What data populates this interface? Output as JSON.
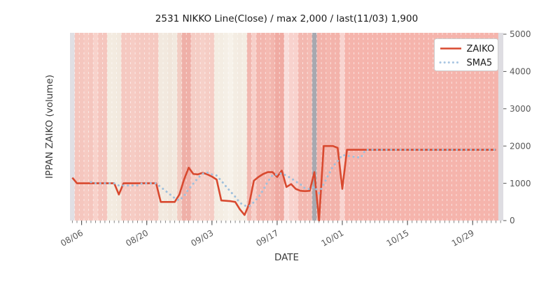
{
  "title": "2531 NIKKO Line(Close) / max 2,000 / last(11/03) 1,900",
  "axes": {
    "x_label": "DATE",
    "y_label": "IPPAN ZAIKO (volume)",
    "y_tick_labels": [
      "0",
      "1000",
      "2000",
      "3000",
      "4000",
      "5000"
    ],
    "x_tick_labels": [
      "08/06",
      "08/20",
      "09/03",
      "09/17",
      "10/01",
      "10/15",
      "10/29"
    ],
    "x_tick_day_indices": [
      2,
      16,
      30,
      44,
      58,
      72,
      86
    ]
  },
  "legend": {
    "items": [
      {
        "label": "ZAIKO",
        "color": "#d8492f",
        "style": "solid"
      },
      {
        "label": "SMA5",
        "color": "#a9c6e2",
        "style": "dotted"
      }
    ]
  },
  "chart_data": {
    "type": "line",
    "title": "2531 NIKKO Line(Close) / max 2,000 / last(11/03) 1,900",
    "xlabel": "DATE",
    "ylabel": "IPPAN ZAIKO (volume)",
    "x_start_date": "08/04",
    "x_end_date": "11/03",
    "num_days": 92,
    "ylim": [
      0,
      5000
    ],
    "max_value": 2000,
    "last_value": 1900,
    "last_date": "11/03",
    "series": [
      {
        "name": "ZAIKO",
        "color": "#d8492f",
        "style": "solid",
        "values": [
          1150,
          1000,
          1000,
          1000,
          1000,
          1000,
          1000,
          1000,
          1000,
          1000,
          700,
          1000,
          1000,
          1000,
          1000,
          1000,
          1000,
          1000,
          1000,
          500,
          500,
          500,
          500,
          700,
          1100,
          1420,
          1250,
          1240,
          1280,
          1240,
          1180,
          1100,
          540,
          530,
          520,
          500,
          300,
          150,
          450,
          1070,
          1170,
          1250,
          1300,
          1300,
          1170,
          1340,
          900,
          980,
          850,
          800,
          790,
          800,
          1300,
          0,
          2000,
          2000,
          2000,
          1950,
          850,
          1900,
          1900,
          1900,
          1900,
          1900,
          1900,
          1900,
          1900,
          1900,
          1900,
          1900,
          1900,
          1900,
          1900,
          1900,
          1900,
          1900,
          1900,
          1900,
          1900,
          1900,
          1900,
          1900,
          1900,
          1900,
          1900,
          1900,
          1900,
          1900,
          1900,
          1900,
          1900,
          1900
        ]
      },
      {
        "name": "SMA5",
        "color": "#9fc0dc",
        "style": "dotted",
        "window": 5,
        "derivation": "5-day moving average of ZAIKO"
      }
    ],
    "background_bands": {
      "colors": [
        "#e0dfe4",
        "#f5c6be",
        "#f5c6be",
        "#f6cac2",
        "#f5c6be",
        "#f8d2cb",
        "#f5c6be",
        "#f5c6be",
        "#f3ebe0",
        "#f3ebe0",
        "#f2e9de",
        "#f5c9c1",
        "#f5c9c1",
        "#f6ccc4",
        "#f5c9c1",
        "#f5c9c1",
        "#f5c9c1",
        "#f5c9c1",
        "#f5c9c1",
        "#f2e9df",
        "#f2e9df",
        "#f1e6db",
        "#f2e9df",
        "#f2cdc3",
        "#efb0a8",
        "#efb0a8",
        "#f5cdc5",
        "#f5cdc5",
        "#f6d0c8",
        "#f5cdc5",
        "#f5cdc5",
        "#f4ede3",
        "#f4ede3",
        "#f5efe6",
        "#f7f2ea",
        "#f4ede3",
        "#f3ebe1",
        "#f4ede3",
        "#f2b8b0",
        "#f7cfc9",
        "#f3b6ae",
        "#f3b6ae",
        "#f4bab2",
        "#f3b6ae",
        "#f0aba3",
        "#f0aba3",
        "#f9dedb",
        "#f8d2cd",
        "#f8d2cd",
        "#f3b8b0",
        "#f3b8b0",
        "#f4bbb3",
        "#a8a8af",
        "#f3b3ab",
        "#f3b3ab",
        "#f4b6ae",
        "#f3b3ab",
        "#f3b3ab",
        "#f8d4d0",
        "#f5b4ac",
        "#f5b4ac",
        "#f5b4ac",
        "#f5b4ac",
        "#f5b4ac",
        "#f5b4ac",
        "#f5b4ac",
        "#f5b4ac",
        "#f5b4ac",
        "#f5b4ac",
        "#f5b4ac",
        "#f5b4ac",
        "#f5b4ac",
        "#f5b4ac",
        "#f5b4ac",
        "#f5b4ac",
        "#f5b4ac",
        "#f5b4ac",
        "#f5b4ac",
        "#f5b4ac",
        "#f5b4ac",
        "#f5b4ac",
        "#f5b4ac",
        "#f5b4ac",
        "#f5b4ac",
        "#f5b4ac",
        "#f5b4ac",
        "#f5b4ac",
        "#f5b4ac",
        "#f5b4ac",
        "#f5b4ac",
        "#f5b4ac",
        "#f5b4ac"
      ],
      "separator_color": "rgba(255,255,255,0.6)",
      "right_edge_color": "#dedde2",
      "gray_day_index": 52
    }
  }
}
